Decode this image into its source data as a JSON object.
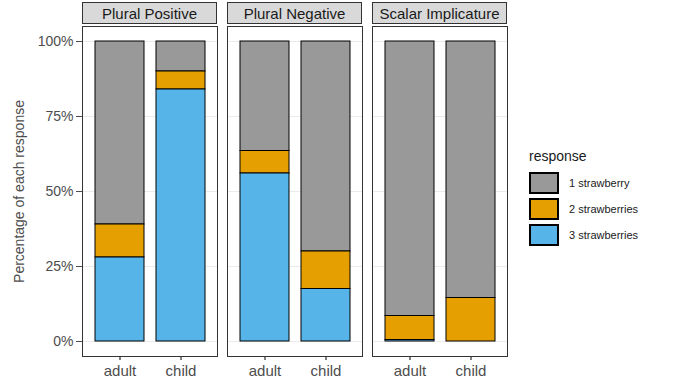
{
  "chart_data": {
    "type": "bar",
    "stacked": true,
    "grid": true,
    "legend": "right",
    "y_label": "Percentage of each response",
    "legend_title": "response",
    "ylim": [
      0,
      100
    ],
    "yticks": [
      {
        "value": 0,
        "label": "0%"
      },
      {
        "value": 25,
        "label": "25%"
      },
      {
        "value": 50,
        "label": "50%"
      },
      {
        "value": 75,
        "label": "75%"
      },
      {
        "value": 100,
        "label": "100%"
      }
    ],
    "categories": [
      "adult",
      "child"
    ],
    "panels": [
      {
        "title": "Plural Positive",
        "series": [
          {
            "name": "1 strawberry",
            "color": "#999999",
            "values": [
              61,
              10
            ]
          },
          {
            "name": "2 strawberries",
            "color": "#E69F00",
            "values": [
              11,
              6
            ]
          },
          {
            "name": "3 strawberries",
            "color": "#56B4E9",
            "values": [
              28,
              84
            ]
          }
        ]
      },
      {
        "title": "Plural Negative",
        "series": [
          {
            "name": "1 strawberry",
            "color": "#999999",
            "values": [
              36.5,
              70
            ]
          },
          {
            "name": "2 strawberries",
            "color": "#E69F00",
            "values": [
              7.5,
              12.5
            ]
          },
          {
            "name": "3 strawberries",
            "color": "#56B4E9",
            "values": [
              56,
              17.5
            ]
          }
        ]
      },
      {
        "title": "Scalar Implicature",
        "series": [
          {
            "name": "1 strawberry",
            "color": "#999999",
            "values": [
              91.5,
              85.5
            ]
          },
          {
            "name": "2 strawberries",
            "color": "#E69F00",
            "values": [
              8,
              14.5
            ]
          },
          {
            "name": "3 strawberries",
            "color": "#56B4E9",
            "values": [
              0.5,
              0
            ]
          }
        ]
      }
    ]
  }
}
